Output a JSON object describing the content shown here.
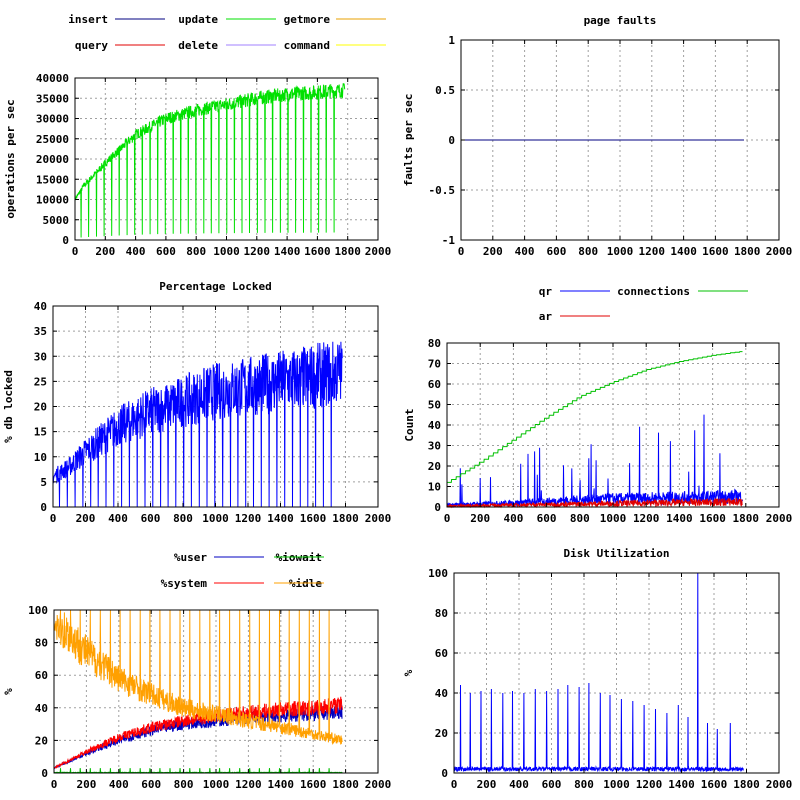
{
  "chart_data": [
    {
      "type": "line",
      "title": "",
      "ylabel": "operations per sec",
      "xlim": [
        0,
        2000
      ],
      "ylim": [
        0,
        40000
      ],
      "xticks": [
        0,
        200,
        400,
        600,
        800,
        1000,
        1200,
        1400,
        1600,
        1800,
        2000
      ],
      "yticks": [
        0,
        5000,
        10000,
        15000,
        20000,
        25000,
        30000,
        35000,
        40000
      ],
      "grid": true,
      "legend": "top",
      "series": [
        {
          "name": "insert",
          "color": "#000080",
          "trend": [
            [
              0,
              0
            ],
            [
              1780,
              0
            ]
          ]
        },
        {
          "name": "update",
          "color": "#00e000",
          "noise": 0.05,
          "drops": 34,
          "dropTo": 0.05,
          "trend": [
            [
              0,
              10000
            ],
            [
              60,
              13500
            ],
            [
              200,
              19000
            ],
            [
              400,
              26000
            ],
            [
              600,
              30000
            ],
            [
              800,
              32000
            ],
            [
              1000,
              33500
            ],
            [
              1200,
              35000
            ],
            [
              1400,
              36000
            ],
            [
              1600,
              36500
            ],
            [
              1780,
              37000
            ]
          ]
        },
        {
          "name": "getmore",
          "color": "#e8a000",
          "trend": [
            [
              0,
              0
            ],
            [
              1780,
              0
            ]
          ]
        },
        {
          "name": "query",
          "color": "#e00000",
          "trend": [
            [
              0,
              0
            ],
            [
              1780,
              0
            ]
          ]
        },
        {
          "name": "delete",
          "color": "#a080ff",
          "trend": [
            [
              0,
              0
            ],
            [
              1780,
              0
            ]
          ]
        },
        {
          "name": "command",
          "color": "#ffff00",
          "trend": [
            [
              0,
              0
            ],
            [
              1780,
              0
            ]
          ]
        }
      ]
    },
    {
      "type": "line",
      "title": "page faults",
      "ylabel": "faults per sec",
      "xlim": [
        0,
        2000
      ],
      "ylim": [
        -1,
        1
      ],
      "xticks": [
        0,
        200,
        400,
        600,
        800,
        1000,
        1200,
        1400,
        1600,
        1800,
        2000
      ],
      "yticks": [
        -1,
        -0.5,
        0,
        0.5,
        1
      ],
      "grid": true,
      "series": [
        {
          "name": "",
          "color": "#000080",
          "trend": [
            [
              0,
              0
            ],
            [
              1780,
              0
            ]
          ]
        }
      ]
    },
    {
      "type": "line",
      "title": "Percentage Locked",
      "ylabel": "% db locked",
      "xlim": [
        0,
        2000
      ],
      "ylim": [
        0,
        40
      ],
      "xticks": [
        0,
        200,
        400,
        600,
        800,
        1000,
        1200,
        1400,
        1600,
        1800,
        2000
      ],
      "yticks": [
        0,
        5,
        10,
        15,
        20,
        25,
        30,
        35,
        40
      ],
      "grid": true,
      "series": [
        {
          "name": "",
          "color": "#0000ff",
          "noise": 0.25,
          "drops": 36,
          "dropTo": 0,
          "trend": [
            [
              0,
              6
            ],
            [
              100,
              8
            ],
            [
              200,
              11
            ],
            [
              400,
              16
            ],
            [
              600,
              19
            ],
            [
              800,
              21
            ],
            [
              1000,
              23
            ],
            [
              1200,
              24
            ],
            [
              1400,
              25
            ],
            [
              1600,
              26
            ],
            [
              1780,
              27
            ]
          ]
        }
      ]
    },
    {
      "type": "line",
      "title": "",
      "ylabel": "Count",
      "xlim": [
        0,
        2000
      ],
      "ylim": [
        0,
        80
      ],
      "xticks": [
        0,
        200,
        400,
        600,
        800,
        1000,
        1200,
        1400,
        1600,
        1800,
        2000
      ],
      "yticks": [
        0,
        10,
        20,
        30,
        40,
        50,
        60,
        70,
        80
      ],
      "grid": true,
      "legend": "top",
      "series": [
        {
          "name": "qr",
          "color": "#0000ff",
          "noise": 0.7,
          "spikes": 28,
          "spikeMax": 50,
          "trend": [
            [
              0,
              1
            ],
            [
              400,
              2
            ],
            [
              1000,
              4
            ],
            [
              1780,
              5
            ]
          ]
        },
        {
          "name": "connections",
          "color": "#00c000",
          "step": 28,
          "trend": [
            [
              0,
              12
            ],
            [
              200,
              22
            ],
            [
              400,
              33
            ],
            [
              600,
              44
            ],
            [
              800,
              54
            ],
            [
              1000,
              61
            ],
            [
              1200,
              67
            ],
            [
              1400,
              71
            ],
            [
              1600,
              74
            ],
            [
              1780,
              76
            ]
          ]
        },
        {
          "name": "ar",
          "color": "#e00000",
          "noise": 0.8,
          "trend": [
            [
              0,
              0.5
            ],
            [
              800,
              1.5
            ],
            [
              1780,
              2.5
            ]
          ]
        }
      ]
    },
    {
      "type": "line",
      "title": "",
      "ylabel": "%",
      "xlim": [
        0,
        2000
      ],
      "ylim": [
        0,
        100
      ],
      "xticks": [
        0,
        200,
        400,
        600,
        800,
        1000,
        1200,
        1400,
        1600,
        1800,
        2000
      ],
      "yticks": [
        0,
        20,
        40,
        60,
        80,
        100
      ],
      "grid": true,
      "legend": "top",
      "series": [
        {
          "name": "%user",
          "color": "#0000c0",
          "noise": 0.12,
          "trend": [
            [
              0,
              3
            ],
            [
              200,
              12
            ],
            [
              400,
              20
            ],
            [
              600,
              26
            ],
            [
              800,
              30
            ],
            [
              1000,
              32
            ],
            [
              1200,
              34
            ],
            [
              1400,
              35
            ],
            [
              1600,
              36
            ],
            [
              1780,
              38
            ]
          ]
        },
        {
          "name": "%iowait",
          "color": "#00c000",
          "noise": 0.5,
          "drops": 28,
          "dropUp": 3,
          "trend": [
            [
              0,
              0.3
            ],
            [
              1780,
              0.3
            ]
          ]
        },
        {
          "name": "%system",
          "color": "#ff0000",
          "noise": 0.12,
          "trend": [
            [
              0,
              3
            ],
            [
              200,
              13
            ],
            [
              400,
              22
            ],
            [
              600,
              28
            ],
            [
              800,
              32
            ],
            [
              1000,
              35
            ],
            [
              1200,
              37
            ],
            [
              1400,
              39
            ],
            [
              1600,
              40
            ],
            [
              1780,
              42
            ]
          ]
        },
        {
          "name": "%idle",
          "color": "#ffa000",
          "noise": 0.15,
          "drops": 28,
          "dropUp": 100,
          "trend": [
            [
              0,
              94
            ],
            [
              200,
              74
            ],
            [
              400,
              58
            ],
            [
              600,
              48
            ],
            [
              800,
              40
            ],
            [
              1000,
              36
            ],
            [
              1200,
              32
            ],
            [
              1400,
              28
            ],
            [
              1600,
              24
            ],
            [
              1780,
              20
            ]
          ]
        }
      ]
    },
    {
      "type": "line",
      "title": "Disk Utilization",
      "ylabel": "%",
      "xlim": [
        0,
        2000
      ],
      "ylim": [
        0,
        100
      ],
      "xticks": [
        0,
        200,
        400,
        600,
        800,
        1000,
        1200,
        1400,
        1600,
        1800,
        2000
      ],
      "yticks": [
        0,
        20,
        40,
        60,
        80,
        100
      ],
      "grid": true,
      "series": [
        {
          "name": "",
          "color": "#0000ff",
          "noise": 0.5,
          "trend": [
            [
              0,
              2
            ],
            [
              1780,
              2
            ]
          ],
          "peaks": [
            [
              40,
              44
            ],
            [
              100,
              40
            ],
            [
              165,
              41
            ],
            [
              230,
              42
            ],
            [
              300,
              40
            ],
            [
              360,
              41
            ],
            [
              430,
              40
            ],
            [
              500,
              42
            ],
            [
              570,
              41
            ],
            [
              640,
              42
            ],
            [
              700,
              44
            ],
            [
              770,
              43
            ],
            [
              830,
              45
            ],
            [
              900,
              40
            ],
            [
              960,
              39
            ],
            [
              1030,
              37
            ],
            [
              1100,
              36
            ],
            [
              1170,
              34
            ],
            [
              1240,
              32
            ],
            [
              1310,
              30
            ],
            [
              1380,
              34
            ],
            [
              1440,
              28
            ],
            [
              1500,
              100
            ],
            [
              1560,
              25
            ],
            [
              1620,
              22
            ],
            [
              1700,
              25
            ]
          ]
        }
      ]
    }
  ]
}
